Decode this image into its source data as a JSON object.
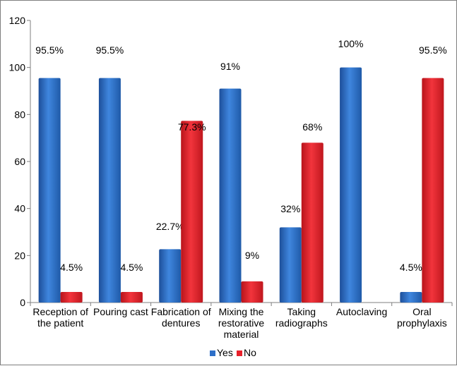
{
  "chart_data": {
    "type": "bar",
    "categories": [
      [
        "Reception of",
        "the patient"
      ],
      [
        "Pouring cast"
      ],
      [
        "Fabrication of",
        "dentures"
      ],
      [
        "Mixing the",
        "restorative",
        "material"
      ],
      [
        "Taking",
        "radiographs"
      ],
      [
        "Autoclaving"
      ],
      [
        "Oral",
        "prophylaxis"
      ]
    ],
    "series": [
      {
        "name": "Yes",
        "color": "#2e6fc8",
        "values": [
          95.5,
          95.5,
          22.7,
          91,
          32,
          100,
          4.5
        ],
        "labels": [
          "95.5%",
          "95.5%",
          "22.7%",
          "91%",
          "32%",
          "100%",
          "4.5%"
        ]
      },
      {
        "name": "No",
        "color": "#e8202a",
        "values": [
          4.5,
          4.5,
          77.3,
          9,
          68,
          null,
          95.5
        ],
        "labels": [
          "4.5%",
          "4.5%",
          "77.3%",
          "9%",
          "68%",
          "",
          "95.5%"
        ]
      }
    ],
    "yticks": [
      "0",
      "20",
      "40",
      "60",
      "80",
      "100",
      "120"
    ],
    "ylim": [
      0,
      120
    ],
    "legend_position": "bottom",
    "grid": false
  }
}
